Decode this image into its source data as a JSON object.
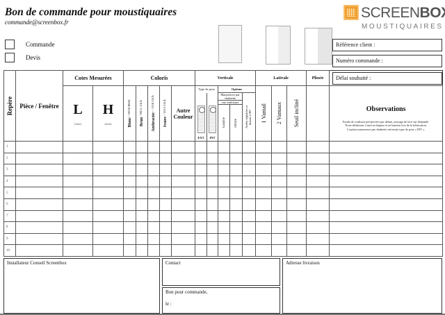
{
  "header": {
    "title": "Bon de commande pour moustiquaires",
    "email": "commande@screenbox.fr"
  },
  "logo": {
    "brand_light": "SCREEN",
    "brand_bold": "BOX",
    "registered": "®",
    "subtitle": "MOUSTIQUAIRES",
    "accent_color": "#f0a030"
  },
  "doc_type": [
    {
      "label": "Commande",
      "checked": false
    },
    {
      "label": "Devis",
      "checked": false
    }
  ],
  "info_fields": {
    "reference": "Référence client :",
    "order_number": "Numéro commande :",
    "delay": "Délai souhaité :"
  },
  "table": {
    "repere": "Repère",
    "piece": "Pièce / Fenêtre",
    "cotes": "Cotes Mesurées",
    "L": "L",
    "H": "H",
    "unit": "(mm)",
    "coloris": "Coloris",
    "colors": [
      {
        "name": "Blanc",
        "code": " - 9016 MAT"
      },
      {
        "name": "Brun",
        "code": " - 8011 TEX"
      },
      {
        "name": "Anthracite",
        "code": " - 7016 TEX"
      },
      {
        "name": "Ivoire",
        "code": " - 1013 TEX"
      }
    ],
    "autre_couleur": "Autre Couleur",
    "verticale": "Verticale",
    "type_pose": "Type de pose",
    "options": "Options",
    "manoeuvre": "Manoeuvre par chaînette",
    "vue_interieure": "vue intérieure",
    "gauche": "Gauche",
    "droite": "Droite",
    "arrets": "Arrêts réglables et bossés à 90°",
    "ext": "EXT",
    "int": "INT",
    "laterale": "Latérale",
    "un_vantail": "1 Vantail",
    "deux_vantaux": "2 Vantaux",
    "seuil": "Seuil incliné",
    "plissee": "Plissée",
    "observations": "Observations",
    "observations_note": [
      "Fonds de coulisses pré-percées par défaut, perçage de face sur demande.",
      "Nous déduisons 2 mm en largeur et en hauteur lors de la fabrication.",
      "L'option manoeuvre par chaînette nécessite type de pose « INT »."
    ],
    "rows": [
      "1",
      "2",
      "3",
      "4",
      "5",
      "6",
      "7",
      "8",
      "9",
      "10"
    ]
  },
  "footer": {
    "installer": "Installateur Conseil Screenbox",
    "contact": "Contact",
    "bon_pour": "Bon pour commande,",
    "le": "le :",
    "adresse": "Adresse livraison"
  }
}
